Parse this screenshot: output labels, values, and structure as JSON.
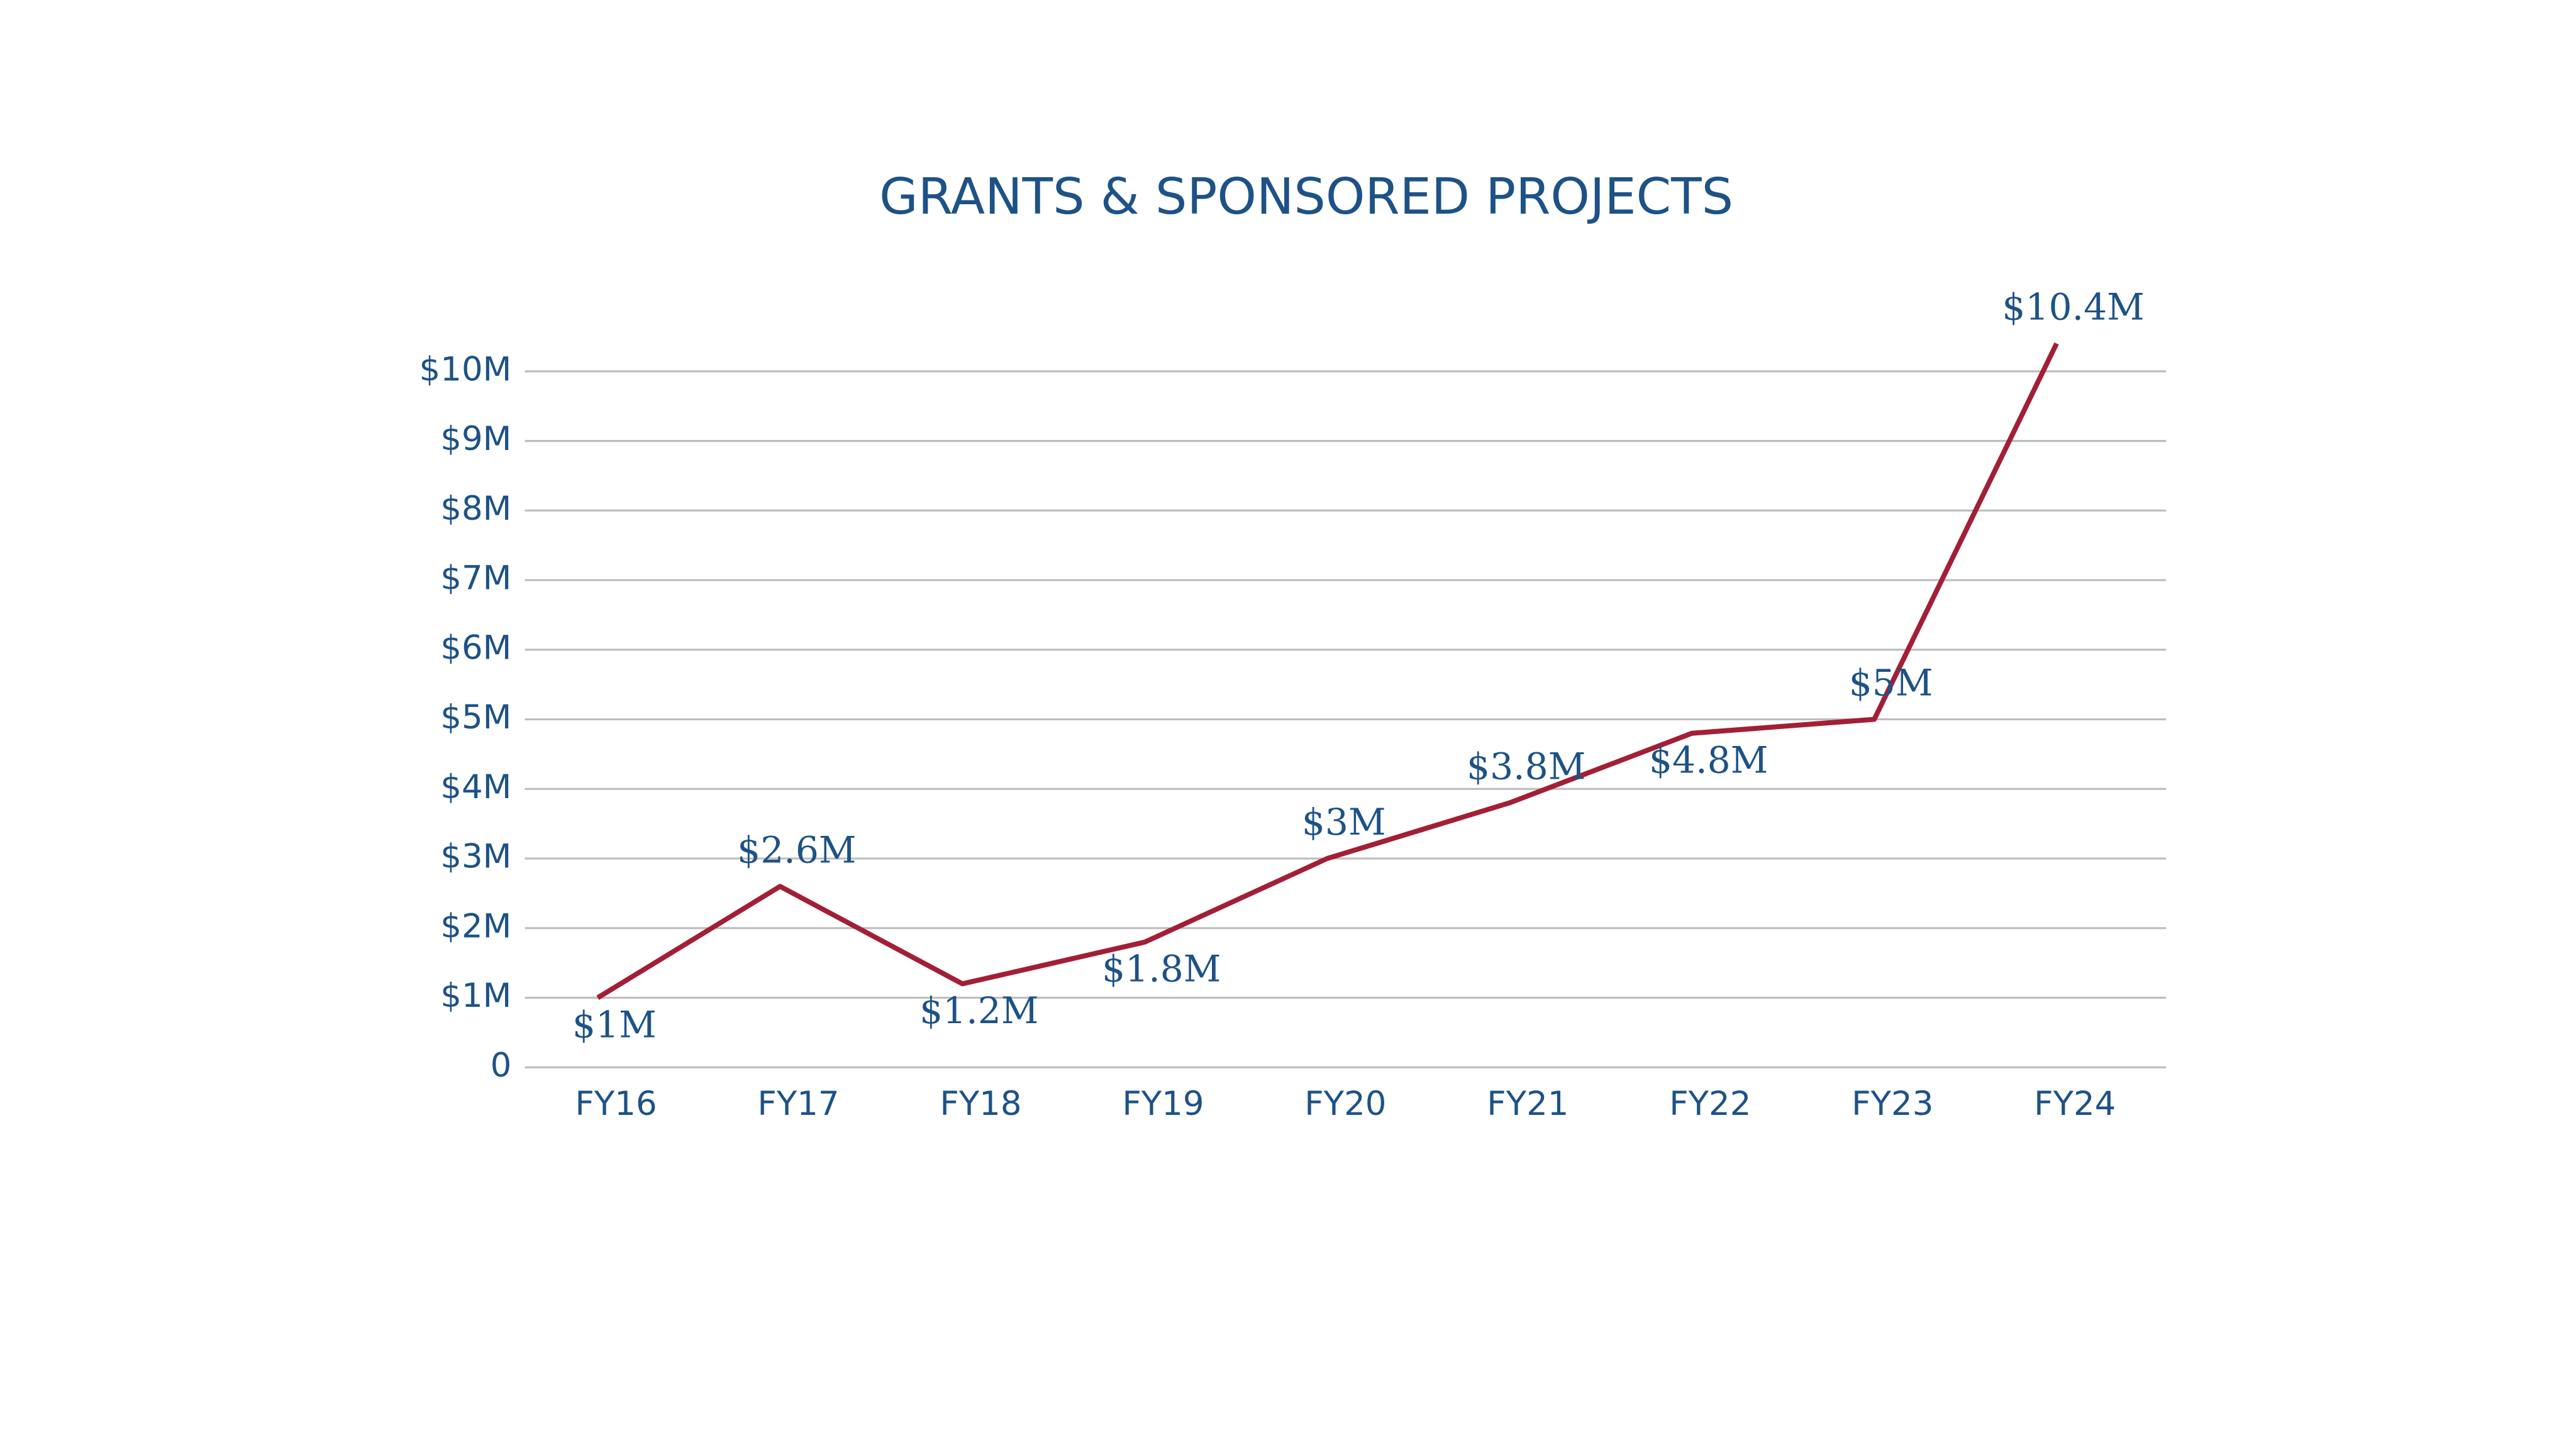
{
  "chart_data": {
    "type": "line",
    "title": "GRANTS & SPONSORED PROJECTS",
    "categories": [
      "FY16",
      "FY17",
      "FY18",
      "FY19",
      "FY20",
      "FY21",
      "FY22",
      "FY23",
      "FY24"
    ],
    "series": [
      {
        "color": "#a21f36",
        "values": [
          1000000,
          2600000,
          1200000,
          1800000,
          3000000,
          3800000,
          4800000,
          5000000,
          10400000
        ],
        "value_labels": [
          "$1M",
          "$2.6M",
          "$1.2M",
          "$1.8M",
          "$3M",
          "$3.8M",
          "$4.8M",
          "$5M",
          "$10.4M"
        ]
      }
    ],
    "ylim": [
      0,
      10000000
    ],
    "yticks": [
      0,
      {
        "value": 1000000,
        "label": "$1M"
      },
      {
        "value": 2000000,
        "label": "$2M"
      },
      {
        "value": 3000000,
        "label": "$3M"
      },
      {
        "value": 4000000,
        "label": "$4M"
      },
      {
        "value": 5000000,
        "label": "$5M"
      },
      {
        "value": 6000000,
        "label": "$6M"
      },
      {
        "value": 7000000,
        "label": "$7M"
      },
      {
        "value": 8000000,
        "label": "$8M"
      },
      {
        "value": 9000000,
        "label": "$9M"
      },
      {
        "value": 10000000,
        "label": "$10M"
      }
    ],
    "grid": true
  }
}
